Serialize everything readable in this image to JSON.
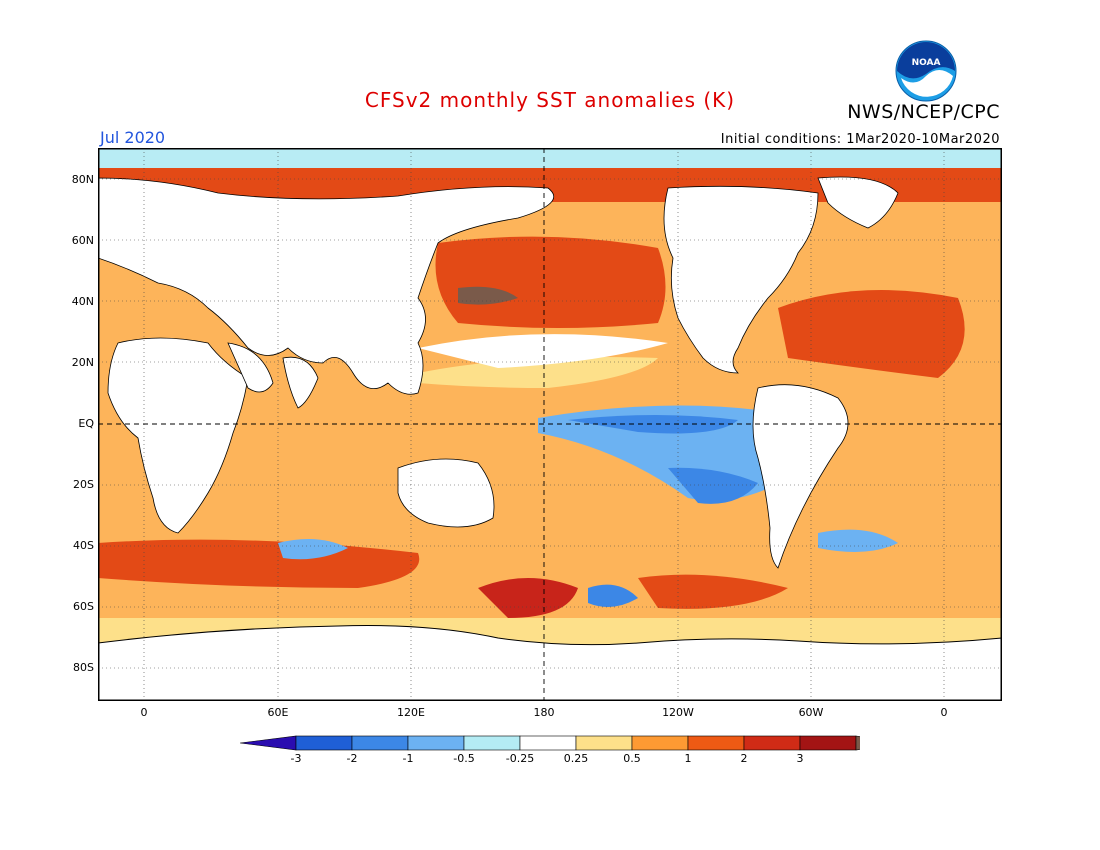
{
  "header": {
    "title": "CFSv2 monthly SST anomalies (K)",
    "agency": "NWS/NCEP/CPC",
    "month": "Jul 2020",
    "initial_conditions": "Initial conditions: 1Mar2020-10Mar2020",
    "logo_text": "NOAA"
  },
  "lat_labels": [
    "80N",
    "60N",
    "40N",
    "20N",
    "EQ",
    "20S",
    "40S",
    "60S",
    "80S"
  ],
  "lon_labels": [
    "0",
    "60E",
    "120E",
    "180",
    "120W",
    "60W",
    "0"
  ],
  "colorbar": {
    "labels": [
      "-3",
      "-2",
      "-1",
      "-0.5",
      "-0.25",
      "0.25",
      "0.5",
      "1",
      "2",
      "3"
    ],
    "colors": [
      "#2a0db0",
      "#1f5fd6",
      "#3c87e6",
      "#6cb2f2",
      "#b4ecf4",
      "#ffffff",
      "#fde08a",
      "#fd9a33",
      "#ee5a14",
      "#d02b16",
      "#a31414",
      "#7a5a4a"
    ]
  }
}
